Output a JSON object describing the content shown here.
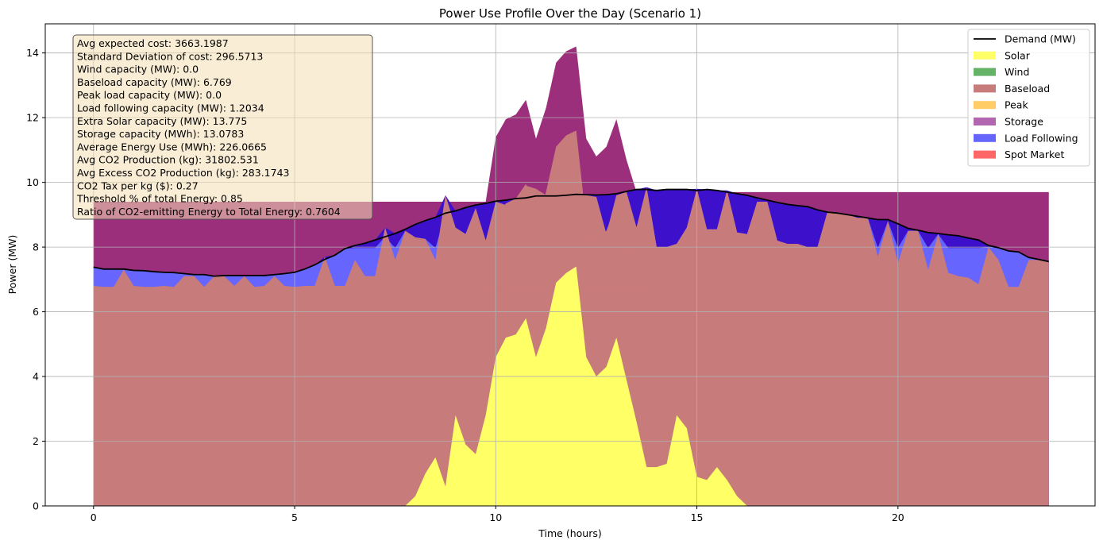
{
  "chart_data": {
    "type": "area",
    "title": "Power Use Profile Over the Day (Scenario 1)",
    "xlabel": "Time (hours)",
    "ylabel": "Power (MW)",
    "xlim": [
      -1.2,
      24.9
    ],
    "ylim": [
      0,
      14.9
    ],
    "x_ticks": [
      0,
      5,
      10,
      15,
      20
    ],
    "y_ticks": [
      0,
      2,
      4,
      6,
      8,
      10,
      12,
      14
    ],
    "grid": true,
    "legend_position": "top-right",
    "legend": [
      {
        "label": "Demand (MW)",
        "color": "#000000",
        "kind": "line"
      },
      {
        "label": "Solar",
        "color": "#ffff66",
        "kind": "patch"
      },
      {
        "label": "Wind",
        "color": "#66b266",
        "kind": "patch"
      },
      {
        "label": "Baseload",
        "color": "#c87b7b",
        "kind": "patch"
      },
      {
        "label": "Peak",
        "color": "#ffcc66",
        "kind": "patch"
      },
      {
        "label": "Storage",
        "color": "#b266b2",
        "kind": "patch"
      },
      {
        "label": "Load Following",
        "color": "#6666ff",
        "kind": "patch"
      },
      {
        "label": "Spot Market",
        "color": "#ff6666",
        "kind": "patch"
      }
    ],
    "x": [
      0,
      0.25,
      0.5,
      0.75,
      1,
      1.25,
      1.5,
      1.75,
      2,
      2.25,
      2.5,
      2.75,
      3,
      3.25,
      3.5,
      3.75,
      4,
      4.25,
      4.5,
      4.75,
      5,
      5.25,
      5.5,
      5.75,
      6,
      6.25,
      6.5,
      6.75,
      7,
      7.25,
      7.5,
      7.75,
      8,
      8.25,
      8.5,
      8.75,
      9,
      9.25,
      9.5,
      9.75,
      10,
      10.25,
      10.5,
      10.75,
      11,
      11.25,
      11.5,
      11.75,
      12,
      12.25,
      12.5,
      12.75,
      13,
      13.25,
      13.5,
      13.75,
      14,
      14.25,
      14.5,
      14.75,
      15,
      15.25,
      15.5,
      15.75,
      16,
      16.25,
      16.5,
      16.75,
      17,
      17.25,
      17.5,
      17.75,
      18,
      18.25,
      18.5,
      18.75,
      19,
      19.25,
      19.5,
      19.75,
      20,
      20.25,
      20.5,
      20.75,
      21,
      21.25,
      21.5,
      21.75,
      22,
      22.25,
      22.5,
      22.75,
      23,
      23.25,
      23.5,
      23.75
    ],
    "demand": [
      7.38,
      7.32,
      7.32,
      7.32,
      7.28,
      7.27,
      7.24,
      7.22,
      7.21,
      7.18,
      7.15,
      7.15,
      7.1,
      7.12,
      7.12,
      7.12,
      7.12,
      7.12,
      7.15,
      7.18,
      7.22,
      7.32,
      7.45,
      7.62,
      7.75,
      7.95,
      8.05,
      8.12,
      8.22,
      8.32,
      8.42,
      8.55,
      8.7,
      8.82,
      8.92,
      9.05,
      9.12,
      9.22,
      9.3,
      9.35,
      9.42,
      9.45,
      9.5,
      9.52,
      9.58,
      9.58,
      9.58,
      9.6,
      9.63,
      9.62,
      9.61,
      9.62,
      9.65,
      9.72,
      9.78,
      9.78,
      9.75,
      9.78,
      9.78,
      9.78,
      9.75,
      9.78,
      9.75,
      9.7,
      9.65,
      9.6,
      9.52,
      9.45,
      9.38,
      9.32,
      9.28,
      9.25,
      9.15,
      9.08,
      9.05,
      9.0,
      8.95,
      8.9,
      8.85,
      8.85,
      8.72,
      8.58,
      8.52,
      8.45,
      8.42,
      8.38,
      8.35,
      8.28,
      8.22,
      8.05,
      7.98,
      7.88,
      7.85,
      7.68,
      7.62,
      7.55
    ],
    "series": [
      {
        "name": "Solar",
        "color": "#ffff66",
        "values": [
          0,
          0,
          0,
          0,
          0,
          0,
          0,
          0,
          0,
          0,
          0,
          0,
          0,
          0,
          0,
          0,
          0,
          0,
          0,
          0,
          0,
          0,
          0,
          0,
          0,
          0,
          0,
          0,
          0,
          0,
          0,
          0,
          0.3,
          1.0,
          1.5,
          0.6,
          2.8,
          1.9,
          1.6,
          2.8,
          4.6,
          5.2,
          5.3,
          5.8,
          4.6,
          5.5,
          6.9,
          7.2,
          7.4,
          4.6,
          4.0,
          4.3,
          5.2,
          3.9,
          2.6,
          1.2,
          1.2,
          1.3,
          2.8,
          2.4,
          0.9,
          0.8,
          1.2,
          0.8,
          0.3,
          0,
          0,
          0,
          0,
          0,
          0,
          0,
          0,
          0,
          0,
          0,
          0,
          0,
          0,
          0,
          0,
          0,
          0,
          0,
          0,
          0,
          0,
          0,
          0,
          0,
          0,
          0,
          0,
          0,
          0,
          0
        ]
      },
      {
        "name": "Baseload",
        "color": "#c87b7b",
        "values": [
          6.769,
          6.769,
          6.769,
          6.769,
          6.769,
          6.769,
          6.769,
          6.769,
          6.769,
          6.769,
          6.769,
          6.769,
          6.769,
          6.769,
          6.769,
          6.769,
          6.769,
          6.769,
          6.769,
          6.769,
          6.769,
          6.769,
          6.769,
          6.769,
          6.769,
          6.769,
          6.769,
          6.769,
          6.769,
          6.769,
          6.769,
          6.769,
          6.769,
          6.769,
          6.769,
          6.769,
          6.769,
          6.769,
          6.769,
          6.769,
          6.769,
          6.769,
          6.769,
          6.769,
          6.769,
          6.769,
          6.769,
          6.769,
          6.769,
          6.769,
          6.769,
          6.769,
          6.769,
          6.769,
          6.769,
          6.769,
          6.769,
          6.769,
          6.769,
          6.769,
          6.769,
          6.769,
          6.769,
          6.769,
          6.769,
          6.769,
          6.769,
          6.769,
          6.769,
          6.769,
          6.769,
          6.769,
          6.769,
          6.769,
          6.769,
          6.769,
          6.769,
          6.769,
          6.769,
          6.769,
          6.769,
          6.769,
          6.769,
          6.769,
          6.769,
          6.769,
          6.769,
          6.769,
          6.769,
          6.769,
          6.769,
          6.769,
          6.769,
          6.769,
          6.769,
          6.769
        ]
      },
      {
        "name": "Storage",
        "color": "#b266b2",
        "values": [
          6.8,
          6.4,
          6.1,
          7.3,
          6.8,
          6.1,
          6.05,
          6.8,
          6.05,
          7.1,
          7.1,
          6.05,
          7.1,
          7.1,
          6.8,
          7.1,
          6.05,
          6.8,
          7.1,
          6.8,
          6.1,
          6.8,
          6.8,
          7.7,
          6.8,
          6.8,
          7.6,
          7.1,
          7.1,
          8.6,
          7.6,
          8.5,
          8.3,
          8.25,
          7.6,
          9.6,
          8.6,
          8.4,
          9.2,
          8.2,
          9.4,
          9.3,
          9.5,
          9.9,
          9.8,
          9.6,
          9.7,
          9.6,
          9.6,
          9.6,
          9.55,
          8.4,
          9.6,
          9.7,
          8.6,
          9.85,
          8.0,
          8.0,
          8.1,
          8.6,
          9.8,
          8.55,
          8.55,
          9.75,
          8.45,
          8.4,
          9.4,
          9.4,
          8.2,
          8.1,
          8.1,
          8.0,
          8.0,
          9.1,
          9.05,
          9.0,
          8.9,
          8.9,
          7.7,
          8.8,
          7.5,
          8.5,
          8.5,
          7.3,
          8.4,
          7.2,
          7.1,
          7.05,
          6.85,
          8.0,
          7.6,
          6.7,
          6.5,
          7.6,
          7.6,
          7.55
        ]
      }
    ]
  },
  "info_box": {
    "lines": [
      "Avg expected cost: 3663.1987",
      "Standard Deviation of cost: 296.5713",
      "Wind capacity (MW): 0.0",
      "Baseload capacity (MW): 6.769",
      "Peak load capacity (MW): 0.0",
      "Load following capacity (MW): 1.2034",
      "Extra Solar capacity (MW): 13.775",
      "Storage capacity (MWh): 13.0783",
      "Average Energy Use (MWh): 226.0665",
      "Avg CO2 Production (kg): 31802.531",
      "Avg Excess CO2 Production (kg): 283.1743",
      "CO2 Tax per kg ($): 0.27",
      "Threshold % of total Energy: 0.85",
      "Ratio of CO2-emitting Energy to Total Energy: 0.7604"
    ],
    "background": "#f5deb3"
  },
  "overlay_colors": {
    "load_following": "#6666ff",
    "deficit": "#3d10cc",
    "surplus": "#9c2f7c"
  },
  "surplus_peak": [
    9.4,
    9.4,
    9.4,
    9.4,
    9.4,
    9.4,
    9.4,
    9.4,
    9.4,
    9.4,
    9.4,
    9.4,
    9.4,
    9.4,
    9.4,
    9.4,
    9.4,
    9.4,
    9.4,
    9.4,
    9.4,
    9.4,
    9.4,
    9.4,
    9.4,
    9.4,
    9.4,
    9.4,
    9.4,
    9.4,
    9.4,
    9.4,
    9.4,
    9.4,
    9.4,
    9.4,
    9.4,
    9.4,
    9.4,
    9.4,
    11.4,
    11.95,
    12.1,
    12.55,
    11.35,
    12.3,
    13.7,
    14.05,
    14.2,
    11.35,
    10.8,
    11.1,
    11.95,
    10.7,
    9.7,
    9.7,
    9.7,
    9.7,
    9.7,
    9.7,
    9.7,
    9.7,
    9.7,
    9.7,
    9.7,
    9.7,
    9.7,
    9.7,
    9.7,
    9.7,
    9.7,
    9.7,
    9.7,
    9.7,
    9.7,
    9.7,
    9.7,
    9.7,
    9.7,
    9.7,
    9.7,
    9.7,
    9.7,
    9.7,
    9.7,
    9.7,
    9.7,
    9.7,
    9.7,
    9.7,
    9.7,
    9.7,
    9.7,
    9.7,
    9.7,
    9.7
  ]
}
